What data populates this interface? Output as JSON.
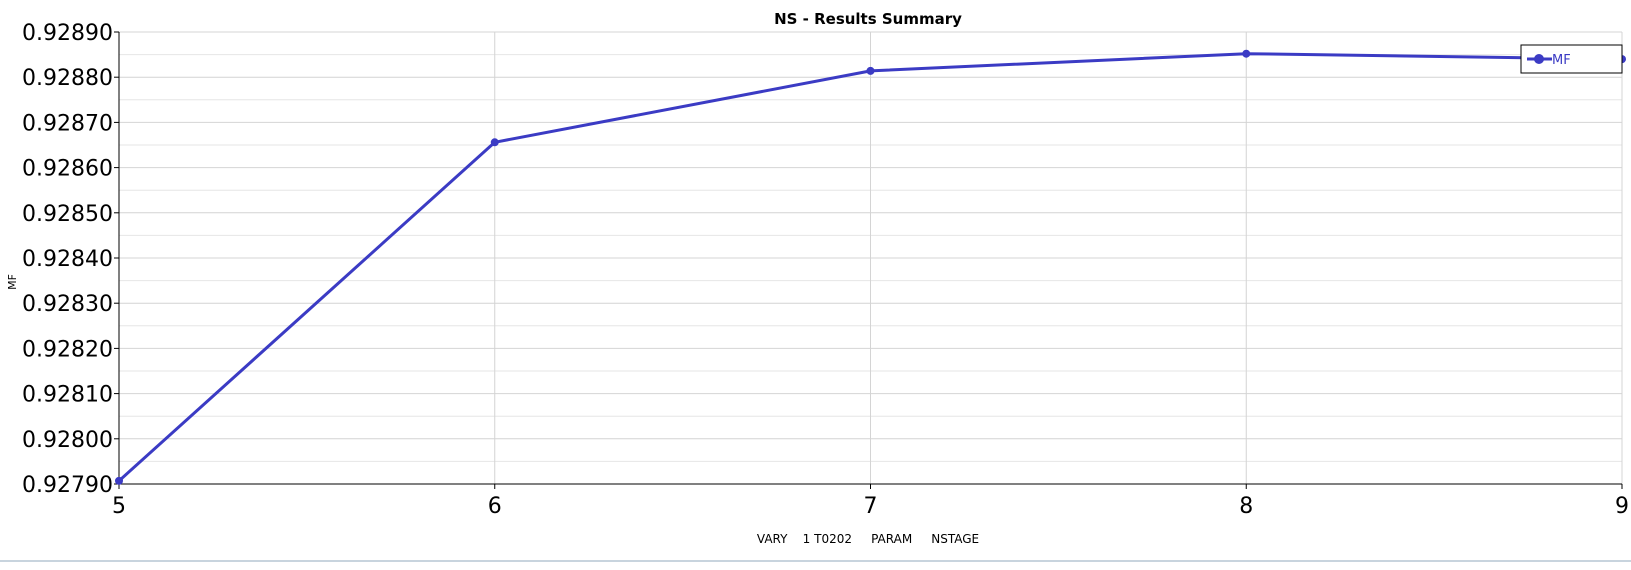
{
  "chart_data": {
    "type": "line",
    "title": "NS - Results Summary",
    "xlabel": "VARY    1 T0202     PARAM     NSTAGE",
    "ylabel": "MF",
    "x": [
      5,
      6,
      7,
      8,
      9
    ],
    "xlim": [
      5,
      9
    ],
    "ylim": [
      0.9279,
      0.9289
    ],
    "x_ticks": [
      "5",
      "6",
      "7",
      "8",
      "9"
    ],
    "y_ticks": [
      "0.92790",
      "0.92800",
      "0.92810",
      "0.92820",
      "0.92830",
      "0.92840",
      "0.92850",
      "0.92860",
      "0.92870",
      "0.92880",
      "0.92890"
    ],
    "grid": true,
    "legend_position": "top-right",
    "series": [
      {
        "name": "MF",
        "color": "#3b3bc4",
        "marker": "circle",
        "values": [
          0.927907,
          0.928656,
          0.928814,
          0.928852,
          0.92884
        ]
      }
    ]
  }
}
